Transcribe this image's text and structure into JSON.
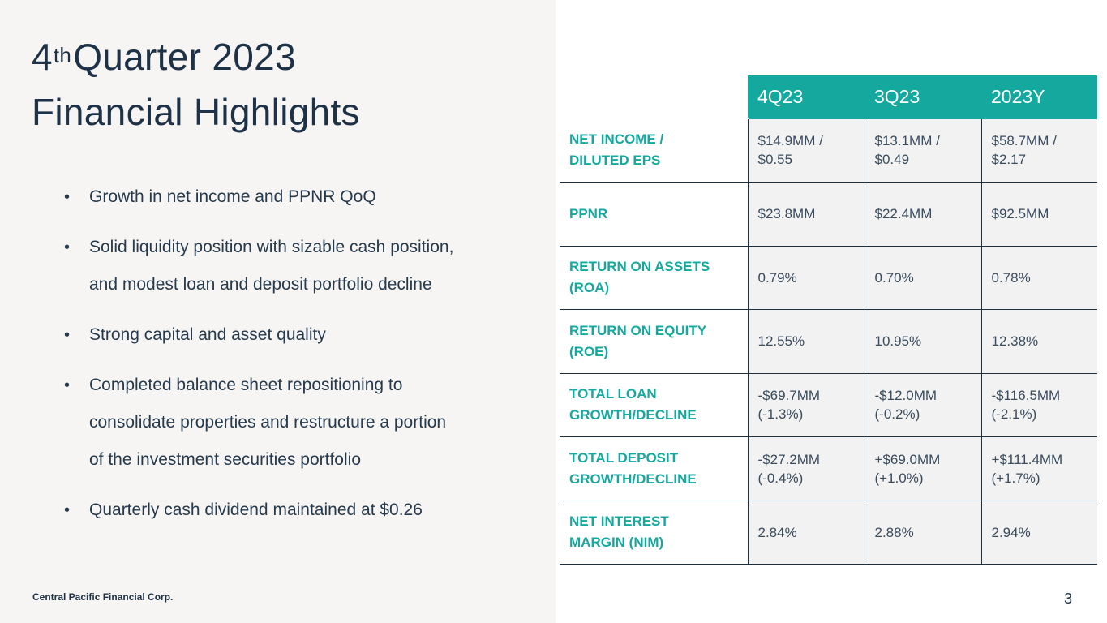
{
  "title": {
    "quarter_num": "4",
    "quarter_sup": "th",
    "line1_rest": "Quarter 2023",
    "line2": "Financial Highlights"
  },
  "bullets": [
    {
      "lines": [
        "Growth in net income and PPNR QoQ"
      ]
    },
    {
      "lines": [
        "Solid liquidity position with sizable cash position,",
        "and modest loan and deposit portfolio decline"
      ]
    },
    {
      "lines": [
        "Strong capital and asset quality"
      ]
    },
    {
      "lines": [
        "Completed balance sheet repositioning to",
        "consolidate properties and restructure a portion",
        "of the investment securities portfolio"
      ]
    },
    {
      "lines": [
        "Quarterly cash dividend maintained at $0.26"
      ]
    }
  ],
  "bullet_char": "•",
  "table": {
    "headers": [
      "4Q23",
      "3Q23",
      "2023Y"
    ],
    "rows": [
      {
        "metric": [
          "NET INCOME /",
          "DILUTED EPS"
        ],
        "values": [
          [
            "$14.9MM /",
            "$0.55"
          ],
          [
            "$13.1MM /",
            "$0.49"
          ],
          [
            "$58.7MM /",
            "$2.17"
          ]
        ]
      },
      {
        "metric": [
          "PPNR"
        ],
        "values": [
          [
            "$23.8MM"
          ],
          [
            "$22.4MM"
          ],
          [
            "$92.5MM"
          ]
        ]
      },
      {
        "metric": [
          "RETURN ON ASSETS",
          "(ROA)"
        ],
        "values": [
          [
            "0.79%"
          ],
          [
            "0.70%"
          ],
          [
            "0.78%"
          ]
        ]
      },
      {
        "metric": [
          "RETURN ON EQUITY",
          "(ROE)"
        ],
        "values": [
          [
            "12.55%"
          ],
          [
            "10.95%"
          ],
          [
            "12.38%"
          ]
        ]
      },
      {
        "metric": [
          "TOTAL LOAN",
          "GROWTH/DECLINE"
        ],
        "values": [
          [
            "-$69.7MM",
            "(-1.3%)"
          ],
          [
            "-$12.0MM",
            "(-0.2%)"
          ],
          [
            "-$116.5MM",
            "(-2.1%)"
          ]
        ]
      },
      {
        "metric": [
          "TOTAL DEPOSIT",
          "GROWTH/DECLINE"
        ],
        "values": [
          [
            "-$27.2MM",
            "(-0.4%)"
          ],
          [
            "+$69.0MM",
            "(+1.0%)"
          ],
          [
            "+$111.4MM",
            "(+1.7%)"
          ]
        ]
      },
      {
        "metric": [
          "NET INTEREST",
          "MARGIN (NIM)"
        ],
        "values": [
          [
            "2.84%"
          ],
          [
            "2.88%"
          ],
          [
            "2.94%"
          ]
        ]
      }
    ]
  },
  "footer": "Central Pacific Financial Corp.",
  "page_number": "3",
  "colors": {
    "accent": "#15a89f",
    "title": "#1e3247",
    "left_bg": "#f7f5f3",
    "cell_bg": "#f2f2f2"
  }
}
